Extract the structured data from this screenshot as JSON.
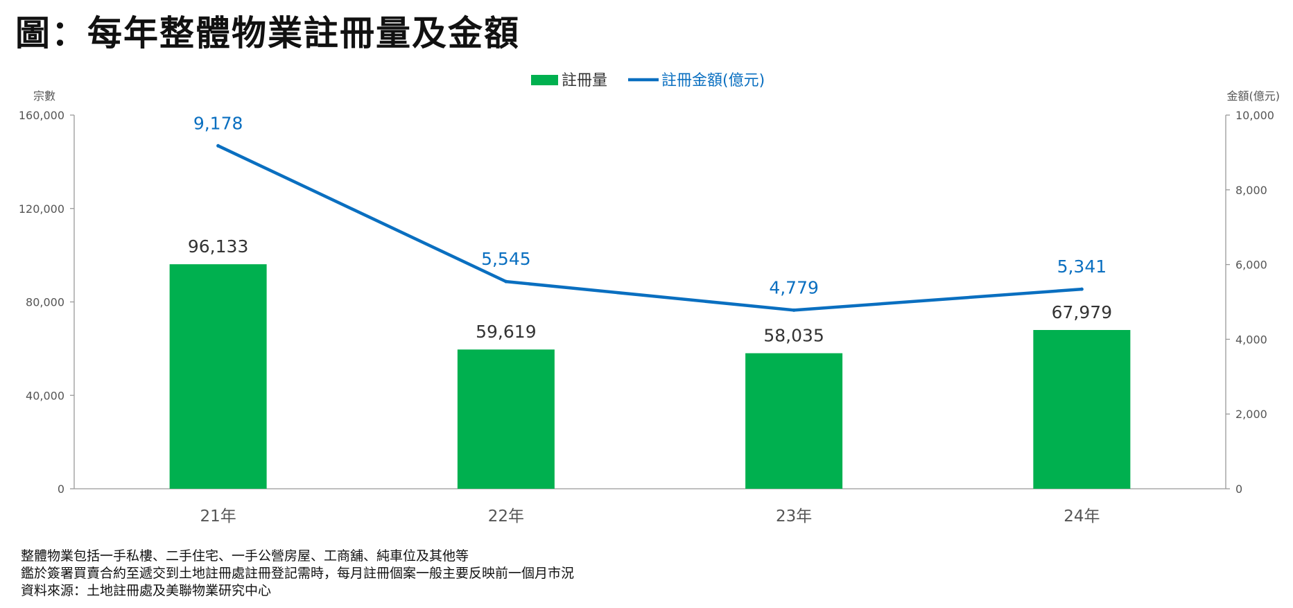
{
  "title": "圖：每年整體物業註冊量及金額",
  "notes": [
    "整體物業包括一手私樓、二手住宅、一手公營房屋、工商舖、純車位及其他等",
    "鑑於簽署買賣合約至遞交到土地註冊處註冊登記需時，每月註冊個案一般主要反映前一個月市況",
    "資料來源：土地註冊處及美聯物業研究中心"
  ],
  "colors": {
    "bar": "#00B04F",
    "line": "#0A6FC0",
    "bar_label": "#333333",
    "line_label": "#0A6FC0",
    "axis": "#999999",
    "tick_label": "#555555"
  },
  "chart_data": {
    "type": "bar",
    "categories": [
      "21年",
      "22年",
      "23年",
      "24年"
    ],
    "series": [
      {
        "name": "註冊量",
        "type": "bar",
        "axis": "left",
        "values": [
          96133,
          59619,
          58035,
          67979
        ],
        "labels": [
          "96,133",
          "59,619",
          "58,035",
          "67,979"
        ]
      },
      {
        "name": "註冊金額(億元)",
        "type": "line",
        "axis": "right",
        "values": [
          9178,
          5545,
          4779,
          5341
        ],
        "labels": [
          "9,178",
          "5,545",
          "4,779",
          "5,341"
        ]
      }
    ],
    "ylabel": "宗數",
    "y2label": "金額(億元)",
    "ylim": [
      0,
      160000
    ],
    "y2lim": [
      0,
      10000
    ],
    "yticks": [
      "0",
      "40,000",
      "80,000",
      "120,000",
      "160,000"
    ],
    "y2ticks": [
      "0",
      "2,000",
      "4,000",
      "6,000",
      "8,000",
      "10,000"
    ],
    "legend_position": "top-center",
    "grid": false
  }
}
